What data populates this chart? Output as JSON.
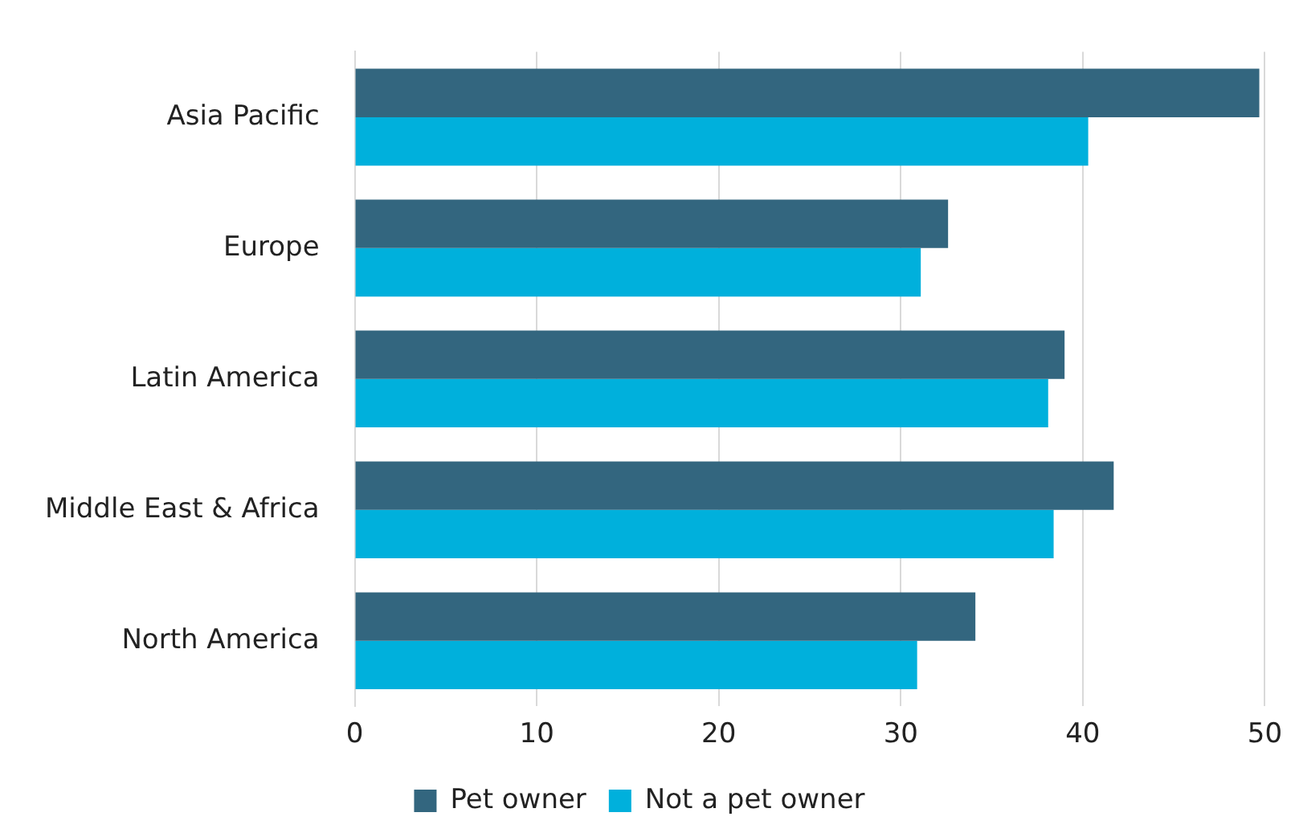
{
  "chart_data": {
    "type": "bar",
    "orientation": "horizontal",
    "categories": [
      "Asia Pacific",
      "Europe",
      "Latin America",
      "Middle East & Africa",
      "North America"
    ],
    "series": [
      {
        "name": "Pet owner",
        "color": "#33667f",
        "values": [
          49.7,
          32.6,
          39.0,
          41.7,
          34.1
        ]
      },
      {
        "name": "Not a pet owner",
        "color": "#00b0dc",
        "values": [
          40.3,
          31.1,
          38.1,
          38.4,
          30.9
        ]
      }
    ],
    "xlim": [
      0,
      50
    ],
    "xticks": [
      0,
      10,
      20,
      30,
      40,
      50
    ],
    "grid": "x",
    "legend": "bottom"
  }
}
